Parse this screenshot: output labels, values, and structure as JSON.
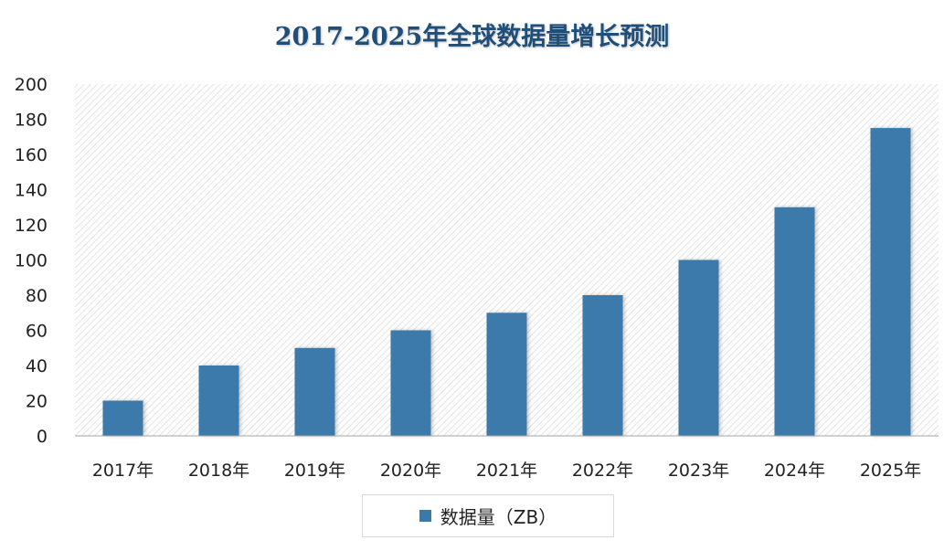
{
  "chart_data": {
    "type": "bar",
    "title": "2017-2025年全球数据量增长预测",
    "categories": [
      "2017年",
      "2018年",
      "2019年",
      "2020年",
      "2021年",
      "2022年",
      "2023年",
      "2024年",
      "2025年"
    ],
    "series": [
      {
        "name": "数据量（ZB）",
        "values": [
          20,
          40,
          50,
          60,
          70,
          80,
          100,
          130,
          175
        ],
        "color": "#3a7aaa"
      }
    ],
    "ylim": [
      0,
      200
    ],
    "yticks": [
      "0",
      "20",
      "40",
      "60",
      "80",
      "100",
      "120",
      "140",
      "160",
      "180",
      "200"
    ],
    "grid": false,
    "plot_background": "hatched",
    "legend_position": "bottom"
  }
}
